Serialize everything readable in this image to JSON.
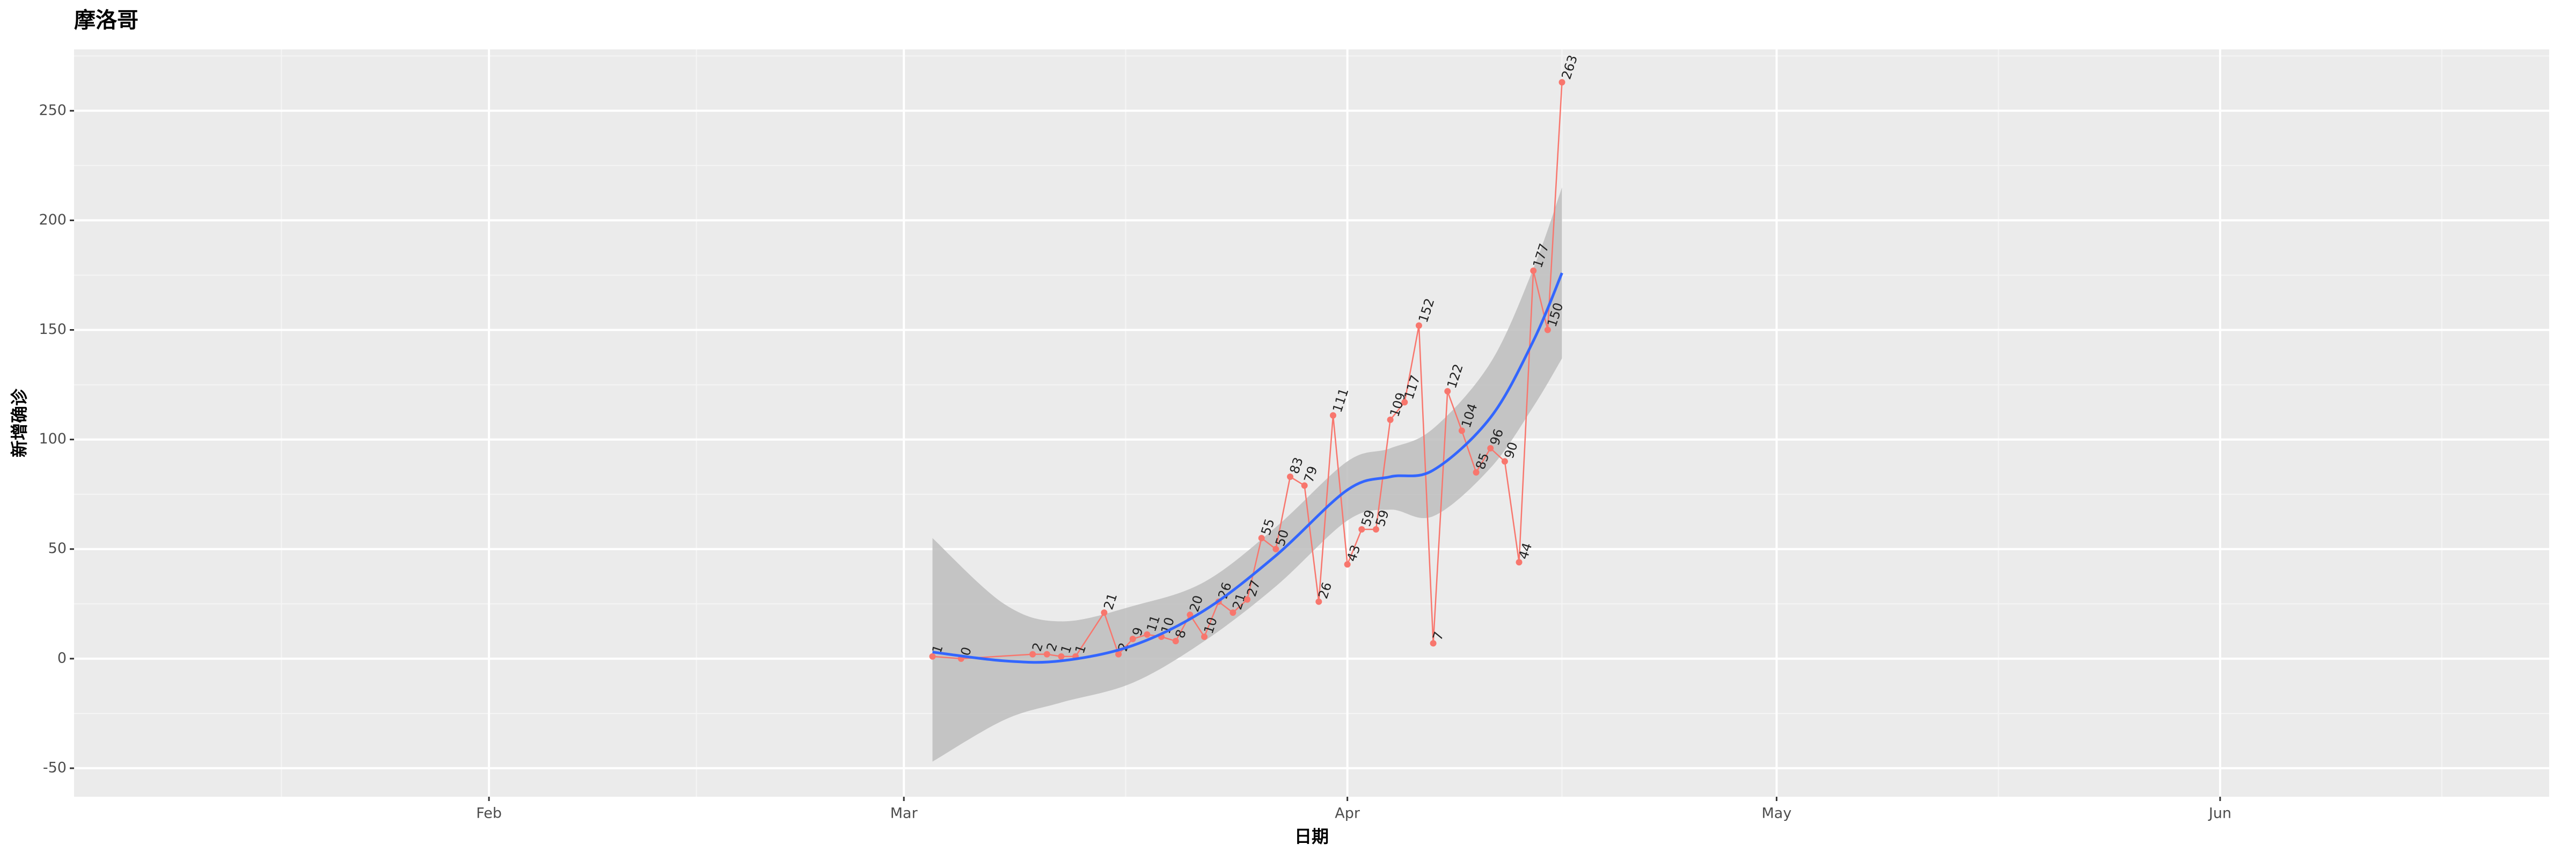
{
  "chart_data": {
    "type": "line",
    "title": "摩洛哥",
    "x_label": "日期",
    "y_label": "新增确诊",
    "x": [
      "03-03",
      "03-05",
      "03-10",
      "03-11",
      "03-12",
      "03-13",
      "03-15",
      "03-16",
      "03-17",
      "03-18",
      "03-19",
      "03-20",
      "03-21",
      "03-22",
      "03-23",
      "03-24",
      "03-25",
      "03-26",
      "03-27",
      "03-28",
      "03-29",
      "03-30",
      "03-31",
      "04-01",
      "04-02",
      "04-03",
      "04-04",
      "04-05",
      "04-06",
      "04-07",
      "04-08",
      "04-09",
      "04-10",
      "04-11",
      "04-12",
      "04-13",
      "04-14",
      "04-15",
      "04-16"
    ],
    "series": [
      {
        "color": "#F8766D",
        "values": [
          1,
          0,
          2,
          2,
          1,
          1,
          21,
          2,
          9,
          11,
          10,
          8,
          20,
          10,
          26,
          21,
          27,
          55,
          50,
          83,
          79,
          26,
          111,
          43,
          59,
          59,
          109,
          117,
          152,
          7,
          122,
          104,
          85,
          96,
          90,
          44,
          177,
          150,
          263
        ]
      }
    ],
    "smooth": {
      "color": "#3366FF",
      "band_color": "#bdbdbd",
      "x": [
        "03-03",
        "03-08",
        "03-12",
        "03-17",
        "03-22",
        "03-27",
        "04-01",
        "04-04",
        "04-07",
        "04-11",
        "04-14",
        "04-16"
      ],
      "values": [
        3,
        -1,
        -1,
        6,
        22,
        47,
        77,
        83,
        86,
        110,
        145,
        176
      ],
      "lower": [
        -47,
        -28,
        -20,
        -11,
        8,
        33,
        63,
        68,
        65,
        87,
        115,
        137
      ],
      "upper": [
        55,
        25,
        17,
        24,
        35,
        60,
        90,
        96,
        105,
        135,
        178,
        215
      ]
    },
    "xlim": [
      "01-03",
      "06-24"
    ],
    "xticks": [
      {
        "value": "02-01",
        "label": "Feb"
      },
      {
        "value": "03-01",
        "label": "Mar"
      },
      {
        "value": "04-01",
        "label": "Apr"
      },
      {
        "value": "05-01",
        "label": "May"
      },
      {
        "value": "06-01",
        "label": "Jun"
      }
    ],
    "ylim": [
      -63,
      278
    ],
    "yticks": [
      -50,
      0,
      50,
      100,
      150,
      200,
      250
    ],
    "grid": true
  }
}
